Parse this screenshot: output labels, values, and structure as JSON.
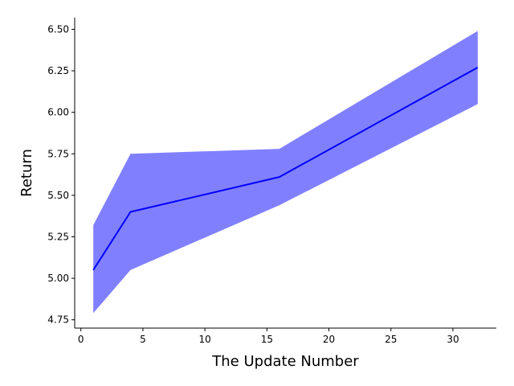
{
  "chart_data": {
    "type": "line",
    "title": "",
    "xlabel": "The Update Number",
    "ylabel": "Return",
    "xlim": [
      -0.5,
      33.5
    ],
    "ylim": [
      4.7,
      6.57
    ],
    "xticks": [
      0,
      5,
      10,
      15,
      20,
      25,
      30
    ],
    "yticks": [
      4.75,
      5.0,
      5.25,
      5.5,
      5.75,
      6.0,
      6.25,
      6.5
    ],
    "ytick_labels": [
      "4.75",
      "5.00",
      "5.25",
      "5.50",
      "5.75",
      "6.00",
      "6.25",
      "6.50"
    ],
    "grid": false,
    "series": [
      {
        "x": [
          1,
          4,
          16,
          32
        ],
        "values": [
          5.05,
          5.4,
          5.61,
          6.27
        ],
        "lower": [
          4.79,
          5.05,
          5.44,
          6.05
        ],
        "upper": [
          5.32,
          5.75,
          5.78,
          6.49
        ],
        "line_color": "#0000ff",
        "band_color": "#8080ff"
      }
    ]
  }
}
